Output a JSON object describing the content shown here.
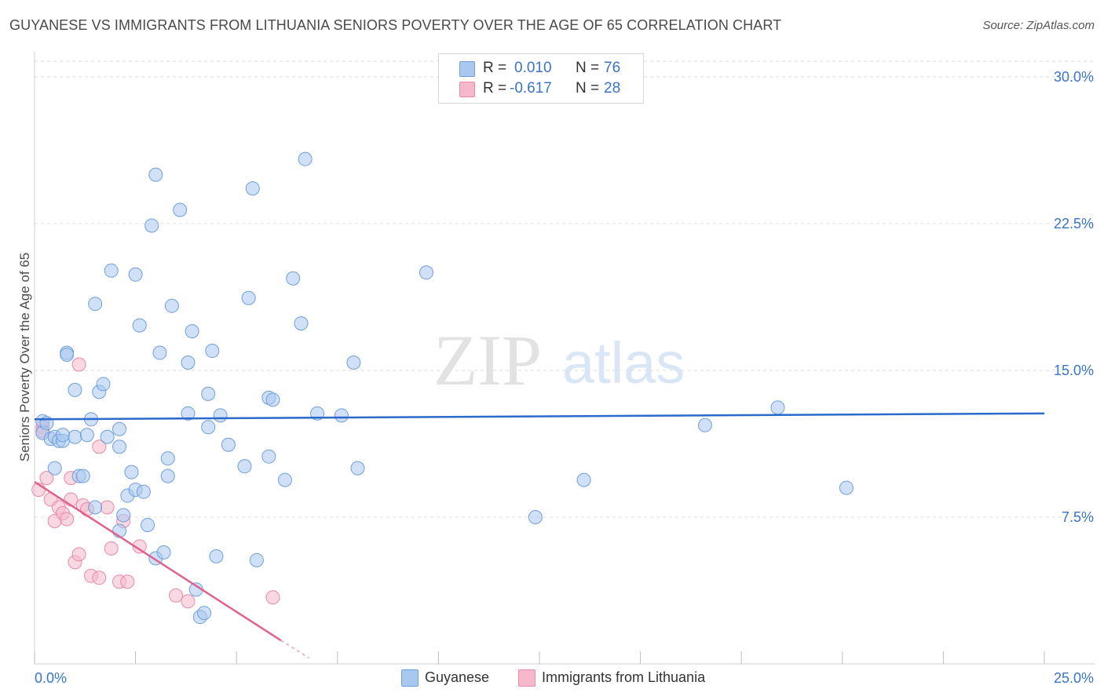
{
  "title": "GUYANESE VS IMMIGRANTS FROM LITHUANIA SENIORS POVERTY OVER THE AGE OF 65 CORRELATION CHART",
  "source": "Source: ZipAtlas.com",
  "watermark": {
    "zip": "ZIP",
    "atlas": "atlas"
  },
  "legend": {
    "rows": [
      {
        "r_label": "R =",
        "r_value": "0.010",
        "n_label": "N =",
        "n_value": "76"
      },
      {
        "r_label": "R =",
        "r_value": "-0.617",
        "n_label": "N =",
        "n_value": "28"
      }
    ]
  },
  "colors": {
    "blue_fill": "#a9c8f0",
    "blue_stroke": "#6f9fdc",
    "blue_line": "#2a6acb",
    "pink_fill": "#f6b8cb",
    "pink_stroke": "#e98aa9",
    "pink_line": "#e0638f",
    "axis_text": "#3a74c8",
    "grid": "#dedede"
  },
  "chart_data": {
    "type": "scatter",
    "title": "GUYANESE VS IMMIGRANTS FROM LITHUANIA SENIORS POVERTY OVER THE AGE OF 65 CORRELATION CHART",
    "xlabel": "",
    "ylabel": "Seniors Poverty Over the Age of 65",
    "xlim": [
      0,
      25
    ],
    "ylim": [
      0,
      30.8
    ],
    "x_tick_labels": [
      "0.0%",
      "25.0%"
    ],
    "y_ticks": [
      7.5,
      15.0,
      22.5,
      30.0
    ],
    "y_tick_labels": [
      "7.5%",
      "15.0%",
      "22.5%",
      "30.0%"
    ],
    "grid": true,
    "legend_position": "top-center",
    "series": [
      {
        "name": "Guyanese",
        "color": "#a9c8f0",
        "trend": {
          "x": [
            0,
            25
          ],
          "y": [
            12.5,
            12.8
          ]
        },
        "points": [
          [
            0.2,
            12.4
          ],
          [
            0.2,
            11.8
          ],
          [
            0.3,
            12.3
          ],
          [
            0.4,
            11.5
          ],
          [
            0.5,
            11.6
          ],
          [
            0.6,
            11.4
          ],
          [
            0.5,
            10.0
          ],
          [
            0.7,
            11.4
          ],
          [
            0.7,
            11.7
          ],
          [
            0.8,
            15.9
          ],
          [
            0.8,
            15.8
          ],
          [
            1.0,
            14.0
          ],
          [
            1.0,
            11.6
          ],
          [
            1.1,
            9.6
          ],
          [
            1.2,
            9.6
          ],
          [
            1.3,
            11.7
          ],
          [
            1.4,
            12.5
          ],
          [
            1.5,
            18.4
          ],
          [
            1.5,
            8.0
          ],
          [
            1.6,
            13.9
          ],
          [
            1.7,
            14.3
          ],
          [
            1.8,
            11.6
          ],
          [
            1.9,
            20.1
          ],
          [
            2.1,
            12.0
          ],
          [
            2.1,
            11.1
          ],
          [
            2.2,
            7.6
          ],
          [
            2.1,
            6.8
          ],
          [
            2.3,
            8.6
          ],
          [
            2.4,
            9.8
          ],
          [
            2.5,
            8.9
          ],
          [
            2.5,
            19.9
          ],
          [
            2.6,
            17.3
          ],
          [
            2.7,
            8.8
          ],
          [
            2.8,
            7.1
          ],
          [
            2.9,
            22.4
          ],
          [
            3.0,
            25.0
          ],
          [
            3.0,
            5.4
          ],
          [
            3.1,
            15.9
          ],
          [
            3.2,
            5.7
          ],
          [
            3.3,
            10.5
          ],
          [
            3.3,
            9.6
          ],
          [
            3.4,
            18.3
          ],
          [
            3.6,
            23.2
          ],
          [
            3.8,
            12.8
          ],
          [
            3.8,
            15.4
          ],
          [
            3.9,
            17.0
          ],
          [
            4.0,
            3.8
          ],
          [
            4.1,
            2.4
          ],
          [
            4.2,
            2.6
          ],
          [
            4.3,
            12.1
          ],
          [
            4.3,
            13.8
          ],
          [
            4.4,
            16.0
          ],
          [
            4.5,
            5.5
          ],
          [
            4.6,
            12.7
          ],
          [
            4.8,
            11.2
          ],
          [
            5.2,
            10.1
          ],
          [
            5.3,
            18.7
          ],
          [
            5.4,
            24.3
          ],
          [
            5.5,
            5.3
          ],
          [
            5.8,
            10.6
          ],
          [
            5.8,
            13.6
          ],
          [
            5.9,
            13.5
          ],
          [
            6.2,
            9.4
          ],
          [
            6.4,
            19.7
          ],
          [
            6.6,
            17.4
          ],
          [
            6.7,
            25.8
          ],
          [
            7.0,
            12.8
          ],
          [
            7.6,
            12.7
          ],
          [
            7.9,
            15.4
          ],
          [
            8.0,
            10.0
          ],
          [
            9.7,
            20.0
          ],
          [
            12.4,
            7.5
          ],
          [
            13.6,
            9.4
          ],
          [
            16.6,
            12.2
          ],
          [
            18.4,
            13.1
          ],
          [
            20.1,
            9.0
          ]
        ]
      },
      {
        "name": "Immigrants from Lithuania",
        "color": "#f6b8cb",
        "trend": {
          "x": [
            0,
            6.1
          ],
          "y": [
            9.3,
            1.2
          ]
        },
        "trend_dashed": {
          "x": [
            6.1,
            6.8
          ],
          "y": [
            1.2,
            0.3
          ]
        },
        "points": [
          [
            0.1,
            8.9
          ],
          [
            0.2,
            12.1
          ],
          [
            0.2,
            11.9
          ],
          [
            0.3,
            9.5
          ],
          [
            0.4,
            8.4
          ],
          [
            0.5,
            7.3
          ],
          [
            0.6,
            8.0
          ],
          [
            0.7,
            7.7
          ],
          [
            0.8,
            7.4
          ],
          [
            0.9,
            9.5
          ],
          [
            0.9,
            8.4
          ],
          [
            1.0,
            5.2
          ],
          [
            1.1,
            15.3
          ],
          [
            1.1,
            5.6
          ],
          [
            1.2,
            8.1
          ],
          [
            1.3,
            7.9
          ],
          [
            1.4,
            4.5
          ],
          [
            1.6,
            4.4
          ],
          [
            1.6,
            11.1
          ],
          [
            1.8,
            8.0
          ],
          [
            1.9,
            5.9
          ],
          [
            2.1,
            4.2
          ],
          [
            2.2,
            7.3
          ],
          [
            2.3,
            4.2
          ],
          [
            2.6,
            6.0
          ],
          [
            3.5,
            3.5
          ],
          [
            3.8,
            3.2
          ],
          [
            5.9,
            3.4
          ]
        ]
      }
    ]
  },
  "bottom_legend": {
    "items": [
      "Guyanese",
      "Immigrants from Lithuania"
    ]
  }
}
